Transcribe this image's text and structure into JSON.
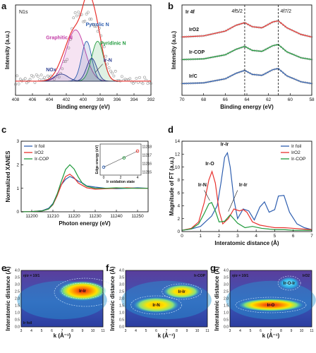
{
  "figure": {
    "panels": [
      "a",
      "b",
      "c",
      "d",
      "e",
      "f",
      "g"
    ]
  },
  "colors": {
    "red": "#e8322e",
    "blue": "#2f5fb0",
    "green": "#1f9a3c",
    "magenta": "#c23ba6",
    "navy": "#2c3e91",
    "gray": "#888888",
    "pink": "#e8877f"
  },
  "chart_data": [
    {
      "id": "a",
      "type": "line",
      "corner_label": "N1s",
      "xlabel": "Binding energy  (eV)",
      "ylabel": "Intensity (a.u.)",
      "xlim": [
        408,
        392
      ],
      "x_ticks": [
        408,
        406,
        404,
        402,
        400,
        398,
        396,
        394,
        392
      ],
      "annotations": [
        "Graphitic N",
        "Pyrrolic N",
        "Pyridinic N",
        "Ir-N",
        "NOx"
      ],
      "series": [
        {
          "name": "Graphitic N",
          "center": 400.9,
          "height": 0.72,
          "width": 1.1
        },
        {
          "name": "Pyrrolic N",
          "center": 399.6,
          "height": 0.56,
          "width": 0.6
        },
        {
          "name": "Pyridinic N",
          "center": 398.3,
          "height": 0.56,
          "width": 0.7
        },
        {
          "name": "Ir-N",
          "center": 399.0,
          "height": 0.32,
          "width": 0.6
        },
        {
          "name": "NOx",
          "center": 402.6,
          "height": 0.1,
          "width": 0.8
        },
        {
          "name": "",
          "x": [
            408,
            406,
            404,
            403,
            402,
            401.5,
            401,
            400.5,
            400,
            399.5,
            399,
            398.5,
            398,
            397.5,
            397,
            396,
            395,
            394,
            392
          ],
          "y": [
            0.08,
            0.08,
            0.1,
            0.16,
            0.32,
            0.7,
            0.96,
            1.0,
            0.9,
            1.0,
            0.92,
            0.86,
            0.74,
            0.48,
            0.28,
            0.13,
            0.1,
            0.09,
            0.08
          ]
        }
      ]
    },
    {
      "id": "b",
      "type": "line",
      "corner_label": "Ir 4f",
      "xlabel": "Binding energy  (eV)",
      "ylabel": "Intensity (a.u.)",
      "xlim": [
        70,
        58
      ],
      "x_ticks": [
        70,
        68,
        66,
        64,
        62,
        60,
        58
      ],
      "peak_labels": [
        "4f5/2",
        "4f7/2"
      ],
      "dashed_lines_at": [
        64.2,
        61.1
      ],
      "series": [
        {
          "name": "IrO2",
          "x": [
            70,
            68,
            66,
            65,
            64.2,
            63.5,
            62.6,
            61.6,
            61.1,
            60.3,
            59,
            58
          ],
          "y": [
            0.1,
            0.16,
            0.42,
            0.74,
            0.88,
            0.66,
            0.6,
            0.92,
            0.98,
            0.6,
            0.24,
            0.1
          ]
        },
        {
          "name": "Ir-COP",
          "x": [
            70,
            68,
            66,
            65,
            64.2,
            63.5,
            62.6,
            61.6,
            61.1,
            60.3,
            59,
            58
          ],
          "y": [
            0.1,
            0.14,
            0.36,
            0.66,
            0.82,
            0.6,
            0.55,
            0.86,
            0.92,
            0.52,
            0.2,
            0.1
          ]
        },
        {
          "name": "Ir/C",
          "x": [
            70,
            68,
            66,
            65,
            64.2,
            63.5,
            62.6,
            61.6,
            61.1,
            60.3,
            59,
            58
          ],
          "y": [
            0.1,
            0.14,
            0.36,
            0.66,
            0.82,
            0.6,
            0.55,
            0.86,
            0.92,
            0.52,
            0.2,
            0.1
          ]
        }
      ]
    },
    {
      "id": "c",
      "type": "line",
      "xlabel": "Photon energy (eV)",
      "ylabel": "Normalized XANES",
      "xlim": [
        11195,
        11255
      ],
      "ylim": [
        0,
        3
      ],
      "x_ticks": [
        11200,
        11210,
        11220,
        11230,
        11240,
        11250
      ],
      "y_ticks": [
        0,
        1,
        2,
        3
      ],
      "legend": [
        "Ir foil",
        "IrO2",
        "Ir-COP"
      ],
      "series": [
        {
          "name": "Ir foil",
          "x": [
            11195,
            11200,
            11205,
            11208,
            11210,
            11212,
            11214,
            11216,
            11218,
            11220,
            11222,
            11224,
            11226,
            11230,
            11235,
            11240,
            11245,
            11250,
            11255
          ],
          "y": [
            0.0,
            0.01,
            0.05,
            0.15,
            0.35,
            0.75,
            1.15,
            1.38,
            1.5,
            1.42,
            1.3,
            1.22,
            1.1,
            1.05,
            1.0,
            0.98,
            1.0,
            1.02,
            1.0
          ]
        },
        {
          "name": "IrO2",
          "x": [
            11195,
            11200,
            11205,
            11208,
            11210,
            11212,
            11214,
            11216,
            11218,
            11220,
            11222,
            11224,
            11226,
            11230,
            11235,
            11240,
            11245,
            11250,
            11255
          ],
          "y": [
            0.0,
            0.01,
            0.04,
            0.12,
            0.3,
            0.68,
            1.15,
            1.5,
            1.6,
            1.45,
            1.22,
            1.12,
            1.02,
            0.96,
            0.98,
            1.0,
            1.02,
            1.0,
            1.0
          ]
        },
        {
          "name": "Ir-COP",
          "x": [
            11195,
            11200,
            11205,
            11208,
            11210,
            11212,
            11214,
            11216,
            11218,
            11220,
            11222,
            11224,
            11226,
            11230,
            11235,
            11240,
            11245,
            11250,
            11255
          ],
          "y": [
            0.0,
            0.01,
            0.04,
            0.12,
            0.32,
            0.75,
            1.3,
            1.8,
            2.0,
            1.82,
            1.48,
            1.2,
            1.08,
            1.0,
            1.0,
            1.02,
            1.0,
            1.0,
            1.0
          ]
        }
      ],
      "inset": {
        "type": "scatter",
        "xlabel": "Ir oxidation state",
        "ylabel": "Edge energy (eV)",
        "xlim": [
          0,
          4
        ],
        "ylim": [
          11215,
          11218
        ],
        "x_ticks": [
          0,
          2,
          4
        ],
        "y_ticks": [
          11215,
          11216,
          11217,
          11218
        ],
        "points": [
          {
            "name": "Ir foil",
            "x": 0,
            "y": 11215.6
          },
          {
            "name": "Ir-COP",
            "x": 2.4,
            "y": 11216.7
          },
          {
            "name": "IrO2",
            "x": 4,
            "y": 11217.5
          }
        ]
      }
    },
    {
      "id": "d",
      "type": "line",
      "xlabel": "Interatomic distance (Å)",
      "ylabel": "Magnitude of FT (a.u.)",
      "xlim": [
        0,
        7
      ],
      "ylim": [
        0,
        14
      ],
      "x_ticks": [
        0,
        1,
        2,
        3,
        4,
        5,
        6,
        7
      ],
      "y_ticks": [
        0,
        2,
        4,
        6,
        8,
        10,
        12,
        14
      ],
      "legend": [
        "Ir foil",
        "IrO2",
        "Ir-COP"
      ],
      "annotations": [
        "Ir-Ir",
        "Ir-O",
        "Ir-N",
        "Ir-Ir"
      ],
      "series": [
        {
          "name": "Ir foil",
          "x": [
            0,
            0.5,
            1.0,
            1.3,
            1.6,
            1.9,
            2.1,
            2.3,
            2.45,
            2.6,
            2.8,
            3.0,
            3.3,
            3.6,
            3.9,
            4.2,
            4.45,
            4.7,
            5.0,
            5.2,
            5.5,
            5.8,
            6.2,
            6.6,
            7.0
          ],
          "y": [
            0.2,
            0.4,
            0.8,
            1.6,
            2.4,
            4.0,
            7.5,
            11.5,
            12.2,
            10.0,
            5.0,
            2.0,
            3.5,
            3.2,
            1.8,
            3.8,
            4.6,
            3.0,
            3.4,
            5.5,
            5.6,
            3.0,
            1.2,
            0.6,
            0.3
          ]
        },
        {
          "name": "IrO2",
          "x": [
            0,
            0.5,
            0.9,
            1.2,
            1.45,
            1.62,
            1.8,
            2.0,
            2.2,
            2.5,
            2.8,
            3.1,
            3.3,
            3.5,
            3.8,
            4.2,
            4.6,
            5.0,
            5.5,
            6.0,
            6.5,
            7.0
          ],
          "y": [
            0.2,
            0.5,
            1.5,
            4.5,
            8.0,
            9.3,
            7.5,
            3.2,
            1.2,
            2.0,
            3.5,
            3.2,
            3.4,
            3.0,
            1.5,
            1.0,
            0.8,
            0.6,
            0.6,
            0.5,
            0.4,
            0.3
          ]
        },
        {
          "name": "Ir-COP",
          "x": [
            0,
            0.5,
            0.9,
            1.2,
            1.45,
            1.6,
            1.8,
            2.0,
            2.3,
            2.6,
            3.0,
            3.4,
            3.8,
            4.3,
            5.0,
            5.5,
            6.0,
            6.5,
            7.0
          ],
          "y": [
            0.2,
            0.4,
            1.2,
            2.8,
            4.3,
            4.5,
            3.2,
            1.5,
            1.6,
            2.6,
            1.3,
            0.6,
            0.8,
            0.5,
            0.3,
            0.3,
            0.2,
            0.2,
            0.2
          ]
        }
      ]
    },
    {
      "id": "e",
      "type": "heatmap",
      "corner_label": "η/σ = 10/1",
      "sample_label": "Ir foil",
      "xlabel": "k (Å⁻¹)",
      "ylabel": "Interatomic distance (Å)",
      "xlim": [
        3,
        11
      ],
      "ylim": [
        0,
        4
      ],
      "x_ticks": [
        3,
        4,
        5,
        6,
        7,
        8,
        9,
        10,
        11
      ],
      "y_ticks": [
        0.0,
        0.5,
        1.0,
        1.5,
        2.0,
        2.5,
        3.0,
        3.5,
        4.0
      ],
      "features": [
        {
          "label": "Ir-Ir",
          "k": 9.0,
          "r": 2.55
        }
      ]
    },
    {
      "id": "f",
      "type": "heatmap",
      "sample_label": "Ir-COP",
      "xlabel": "k (Å⁻¹)",
      "ylabel": "Interatomic distance (Å)",
      "xlim": [
        3,
        11
      ],
      "ylim": [
        0,
        4
      ],
      "x_ticks": [
        3,
        4,
        5,
        6,
        7,
        8,
        9,
        10,
        11
      ],
      "y_ticks": [
        0.0,
        0.5,
        1.0,
        1.5,
        2.0,
        2.5,
        3.0,
        3.5,
        4.0
      ],
      "features": [
        {
          "label": "Ir-Ir",
          "k": 8.5,
          "r": 2.5
        },
        {
          "label": "Ir-N",
          "k": 6.0,
          "r": 1.55
        }
      ]
    },
    {
      "id": "g",
      "type": "heatmap",
      "corner_label": "η/σ = 10/1",
      "sample_label": "IrO2",
      "xlabel": "k (Å⁻¹)",
      "ylabel": "Interatomic distance (Å)",
      "xlim": [
        3,
        11
      ],
      "ylim": [
        0,
        4
      ],
      "x_ticks": [
        3,
        4,
        5,
        6,
        7,
        8,
        9,
        10,
        11
      ],
      "y_ticks": [
        0.0,
        0.5,
        1.0,
        1.5,
        2.0,
        2.5,
        3.0,
        3.5,
        4.0
      ],
      "features": [
        {
          "label": "Ir-O",
          "k": 7.0,
          "r": 1.55
        },
        {
          "label": "Ir-O-Ir",
          "k": 8.8,
          "r": 3.1
        }
      ]
    }
  ]
}
